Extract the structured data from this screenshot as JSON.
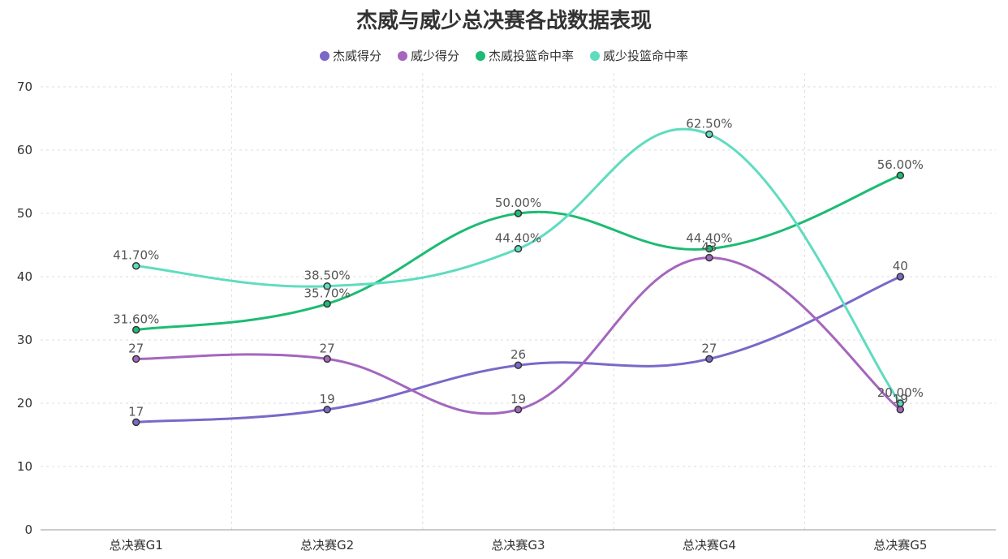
{
  "chart_data": {
    "type": "line",
    "title": "杰威与威少总决赛各战数据表现",
    "xlabel": "",
    "ylabel": "",
    "categories": [
      "总决赛G1",
      "总决赛G2",
      "总决赛G3",
      "总决赛G4",
      "总决赛G5"
    ],
    "ylim": [
      0,
      70
    ],
    "yticks": [
      0,
      10,
      20,
      30,
      40,
      50,
      60,
      70
    ],
    "grid": true,
    "legend_position": "top-center",
    "smooth": true,
    "series": [
      {
        "name": "杰威得分",
        "color": "#7b68c8",
        "values": [
          17,
          19,
          26,
          27,
          40
        ],
        "labels": [
          "17",
          "19",
          "26",
          "27",
          "40"
        ]
      },
      {
        "name": "威少得分",
        "color": "#a466be",
        "values": [
          27,
          27,
          19,
          43,
          19
        ],
        "labels": [
          "27",
          "27",
          "19",
          "43",
          "19"
        ]
      },
      {
        "name": "杰威投篮命中率",
        "color": "#1dbb74",
        "values": [
          31.6,
          35.7,
          50.0,
          44.4,
          56.0
        ],
        "labels": [
          "31.60%",
          "35.70%",
          "50.00%",
          "44.40%",
          "56.00%"
        ]
      },
      {
        "name": "威少投篮命中率",
        "color": "#5fdcc0",
        "values": [
          41.7,
          38.5,
          44.4,
          62.5,
          20.0
        ],
        "labels": [
          "41.70%",
          "38.50%",
          "44.40%",
          "62.50%",
          "20.00%"
        ]
      }
    ]
  }
}
